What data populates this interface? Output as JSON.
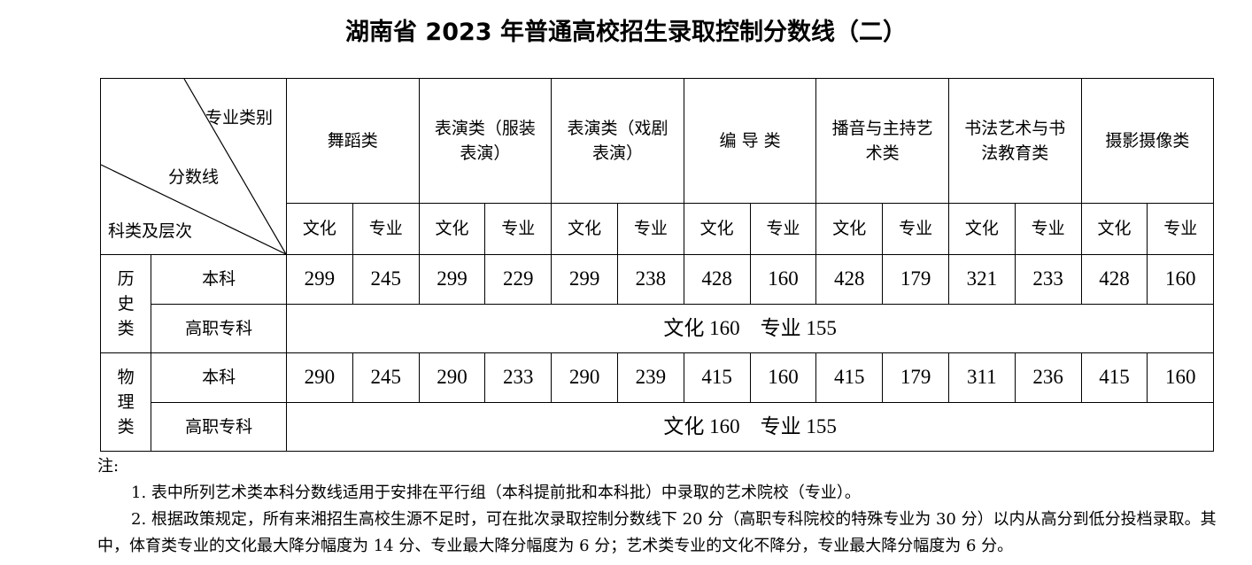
{
  "title": "湖南省 2023 年普通高校招生录取控制分数线（二）",
  "corner": {
    "top": "专业类别",
    "middle": "分数线",
    "bottom": "科类及层次"
  },
  "categories": [
    "舞蹈类",
    "表演类（服装表演）",
    "表演类（戏剧表演）",
    "编 导 类",
    "播音与主持艺术类",
    "书法艺术与书法教育类",
    "摄影摄像类"
  ],
  "sub": {
    "culture": "文化",
    "major": "专业"
  },
  "groups": [
    {
      "name": "历史类",
      "rows": [
        {
          "level": "本科",
          "values": [
            299,
            245,
            299,
            229,
            299,
            238,
            428,
            160,
            428,
            179,
            321,
            233,
            428,
            160
          ]
        },
        {
          "level": "高职专科",
          "merged": "文化 160　专业 155"
        }
      ]
    },
    {
      "name": "物理类",
      "rows": [
        {
          "level": "本科",
          "values": [
            290,
            245,
            290,
            233,
            290,
            239,
            415,
            160,
            415,
            179,
            311,
            236,
            415,
            160
          ]
        },
        {
          "level": "高职专科",
          "merged": "文化 160　专业 155"
        }
      ]
    }
  ],
  "notes": {
    "label": "注:",
    "items": [
      "1. 表中所列艺术类本科分数线适用于安排在平行组（本科提前批和本科批）中录取的艺术院校（专业）。",
      "2. 根据政策规定，所有来湘招生高校生源不足时，可在批次录取控制分数线下 20 分（高职专科院校的特殊专业为 30 分）以内从高分到低分投档录取。其中，体育类专业的文化最大降分幅度为 14 分、专业最大降分幅度为 6 分；艺术类专业的文化不降分，专业最大降分幅度为 6 分。"
    ]
  }
}
